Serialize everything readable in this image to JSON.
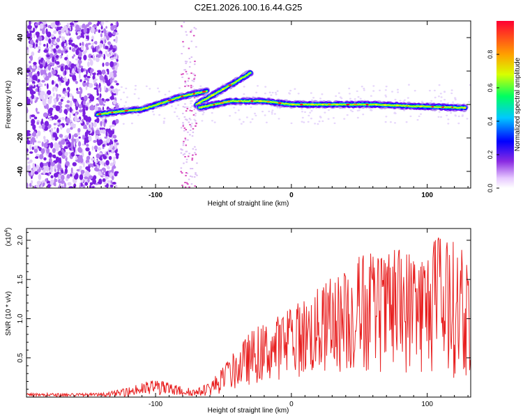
{
  "title": "C2E1.2026.100.16.44.G25",
  "chart_data": [
    {
      "type": "heatmap",
      "xlabel": "Height of straight line (km)",
      "ylabel": "Frequency (Hz)",
      "xlim": [
        -195,
        132
      ],
      "ylim": [
        -50,
        50
      ],
      "xticks": [
        -100,
        0,
        100
      ],
      "xtick_labels": [
        "-100",
        "0",
        "100"
      ],
      "yticks": [
        -40,
        -20,
        0,
        20,
        40
      ],
      "ytick_labels": [
        "-40",
        "-20",
        "0",
        "20",
        "40"
      ],
      "colorbar": {
        "label": "Normalized spectral amplitude",
        "range": [
          0,
          1
        ],
        "ticks": [
          0.0,
          0.2,
          0.4,
          0.6,
          0.8
        ],
        "tick_labels": [
          "0.0",
          "0.2",
          "0.4",
          "0.6",
          "0.8"
        ]
      },
      "features": [
        {
          "name": "main trace",
          "points": [
            [
              -143,
              -6
            ],
            [
              -125,
              -4
            ],
            [
              -110,
              -3
            ],
            [
              -95,
              1
            ],
            [
              -80,
              5
            ],
            [
              -62,
              8
            ]
          ]
        },
        {
          "name": "upper branch",
          "points": [
            [
              -70,
              0
            ],
            [
              -55,
              7
            ],
            [
              -42,
              13
            ],
            [
              -30,
              19
            ]
          ]
        },
        {
          "name": "near-zero trace",
          "points": [
            [
              -68,
              -2
            ],
            [
              -45,
              2
            ],
            [
              -20,
              2
            ],
            [
              0,
              0
            ],
            [
              30,
              0
            ],
            [
              60,
              0
            ],
            [
              90,
              -1
            ],
            [
              128,
              -2
            ]
          ]
        }
      ]
    },
    {
      "type": "line",
      "xlabel": "Height of straight line (km)",
      "ylabel": "SNR (10 * v/v)",
      "y_multiplier_label": "(x10",
      "y_multiplier_exp": "4",
      "y_multiplier_close": ")",
      "xlim": [
        -195,
        132
      ],
      "ylim": [
        0,
        2.15
      ],
      "xticks": [
        -100,
        0,
        100
      ],
      "xtick_labels": [
        "-100",
        "0",
        "100"
      ],
      "yticks": [
        0.5,
        1.0,
        1.5,
        2.0
      ],
      "ytick_labels": [
        "0.5",
        "1.0",
        "1.5",
        "2.0"
      ],
      "color": "#e82020",
      "envelope": [
        [
          -195,
          0.02,
          0.05
        ],
        [
          -140,
          0.02,
          0.05
        ],
        [
          -125,
          0.03,
          0.1
        ],
        [
          -110,
          0.05,
          0.18
        ],
        [
          -100,
          0.05,
          0.24
        ],
        [
          -90,
          0.05,
          0.18
        ],
        [
          -70,
          0.03,
          0.1
        ],
        [
          -60,
          0.06,
          0.2
        ],
        [
          -50,
          0.15,
          0.4
        ],
        [
          -40,
          0.3,
          0.62
        ],
        [
          -30,
          0.45,
          0.85
        ],
        [
          -20,
          0.55,
          0.95
        ],
        [
          -10,
          0.62,
          1.05
        ],
        [
          0,
          0.7,
          1.15
        ],
        [
          10,
          0.75,
          1.3
        ],
        [
          20,
          0.8,
          1.4
        ],
        [
          30,
          0.85,
          1.55
        ],
        [
          40,
          0.85,
          1.65
        ],
        [
          50,
          0.9,
          1.85
        ],
        [
          60,
          0.9,
          1.85
        ],
        [
          70,
          0.85,
          1.8
        ],
        [
          80,
          0.85,
          1.95
        ],
        [
          90,
          0.85,
          1.9
        ],
        [
          100,
          0.8,
          1.95
        ],
        [
          110,
          0.8,
          2.1
        ],
        [
          120,
          0.7,
          2.0
        ],
        [
          132,
          0.7,
          1.8
        ]
      ]
    }
  ]
}
